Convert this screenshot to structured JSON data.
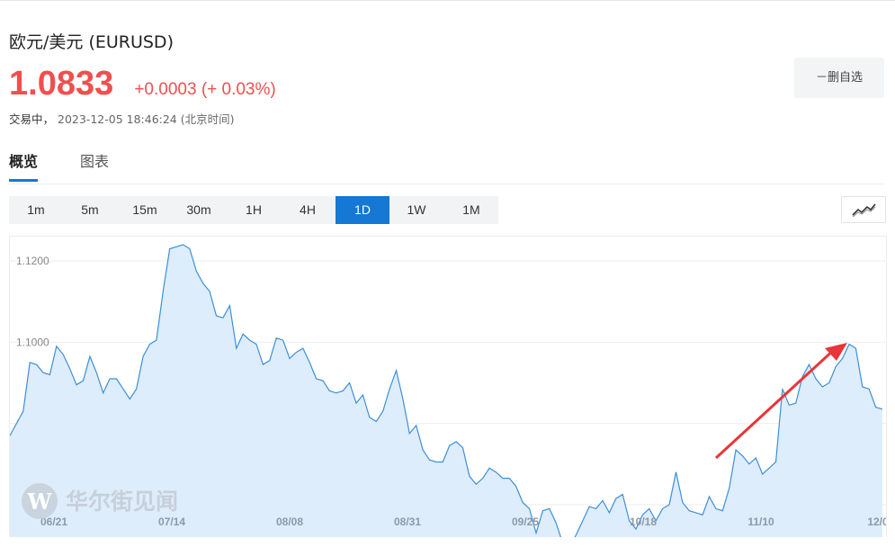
{
  "header": {
    "title": "欧元/美元 (EURUSD)",
    "price": "1.0833",
    "change": "+0.0003 (+ 0.03%)",
    "status_label": "交易中，",
    "timestamp": "2023-12-05 18:46:24 (北京时间)",
    "watch_button": "－删自选"
  },
  "tabs": [
    {
      "label": "概览",
      "active": true
    },
    {
      "label": "图表",
      "active": false
    }
  ],
  "periods": [
    {
      "label": "1m",
      "active": false
    },
    {
      "label": "5m",
      "active": false
    },
    {
      "label": "15m",
      "active": false
    },
    {
      "label": "30m",
      "active": false
    },
    {
      "label": "1H",
      "active": false
    },
    {
      "label": "4H",
      "active": false
    },
    {
      "label": "1D",
      "active": true
    },
    {
      "label": "1W",
      "active": false
    },
    {
      "label": "1M",
      "active": false
    }
  ],
  "chart_type_icon": "line-chart-icon",
  "watermark": {
    "text": "华尔街见闻",
    "logo": "W"
  },
  "colors": {
    "accent": "#1478d4",
    "up": "#f04f4f",
    "line": "#3d8fd8",
    "area": "#deedfb",
    "annotation_arrow": "#e8353a"
  },
  "chart_data": {
    "type": "area",
    "title": "",
    "xlabel": "",
    "ylabel": "",
    "ylim": [
      1.052,
      1.126
    ],
    "yticks": [
      "1.1200",
      "1.1000",
      "1.0800",
      "1.0600"
    ],
    "xticks": [
      "06/21",
      "07/14",
      "08/08",
      "08/31",
      "09/25",
      "10/18",
      "11/10",
      "12/0"
    ],
    "grid": true,
    "annotation": "red arrow pointing up toward late-November high",
    "series": [
      {
        "name": "",
        "values": [
          1.077,
          1.08,
          1.083,
          1.095,
          1.0945,
          1.0925,
          1.092,
          1.099,
          1.097,
          1.0935,
          1.0895,
          1.0905,
          1.0965,
          1.0925,
          1.0875,
          1.091,
          1.091,
          1.0885,
          1.086,
          1.0885,
          1.0965,
          1.0995,
          1.1005,
          1.1125,
          1.123,
          1.1235,
          1.124,
          1.123,
          1.1175,
          1.1145,
          1.1125,
          1.1065,
          1.106,
          1.109,
          1.0985,
          1.102,
          1.1005,
          1.0995,
          1.0945,
          1.0955,
          1.101,
          1.1005,
          1.096,
          1.0975,
          1.0985,
          1.095,
          1.091,
          1.0905,
          1.088,
          1.0875,
          1.088,
          1.09,
          1.085,
          1.087,
          1.0815,
          1.0805,
          1.083,
          1.0885,
          1.093,
          1.086,
          1.0775,
          1.0795,
          1.0735,
          1.071,
          1.0705,
          1.0705,
          1.0745,
          1.0755,
          1.074,
          1.067,
          1.065,
          1.0665,
          1.069,
          1.068,
          1.0665,
          1.0665,
          1.0645,
          1.0605,
          1.059,
          1.053,
          1.0585,
          1.059,
          1.0555,
          1.0505,
          1.0495,
          1.0525,
          1.056,
          1.0595,
          1.059,
          1.061,
          1.058,
          1.0615,
          1.0625,
          1.056,
          1.054,
          1.0575,
          1.059,
          1.056,
          1.059,
          1.06,
          1.068,
          1.0605,
          1.0585,
          1.058,
          1.0575,
          1.062,
          1.059,
          1.0585,
          1.064,
          1.0735,
          1.072,
          1.07,
          1.0715,
          1.0675,
          1.069,
          1.0705,
          1.0885,
          1.0845,
          1.085,
          1.0915,
          1.0945,
          1.091,
          1.089,
          1.09,
          1.094,
          1.096,
          1.0995,
          1.0985,
          1.089,
          1.0885,
          1.084,
          1.0835
        ]
      }
    ]
  }
}
